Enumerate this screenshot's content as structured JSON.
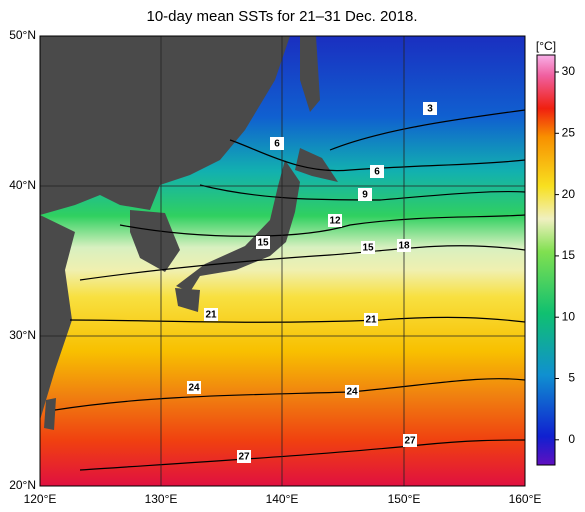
{
  "title": "10-day mean SSTs for 21–31 Dec. 2018.",
  "lat_labels": [
    "50°N",
    "40°N",
    "30°N",
    "20°N"
  ],
  "lon_labels": [
    "120°E",
    "130°E",
    "140°E",
    "150°E",
    "160°E"
  ],
  "colorbar": {
    "unit": "[°C]",
    "ticks": [
      "30",
      "25",
      "20",
      "15",
      "10",
      "5",
      "0"
    ]
  },
  "contour_labels": [
    "3",
    "6",
    "6",
    "9",
    "12",
    "15",
    "15",
    "18",
    "21",
    "21",
    "24",
    "24",
    "27",
    "27"
  ]
}
